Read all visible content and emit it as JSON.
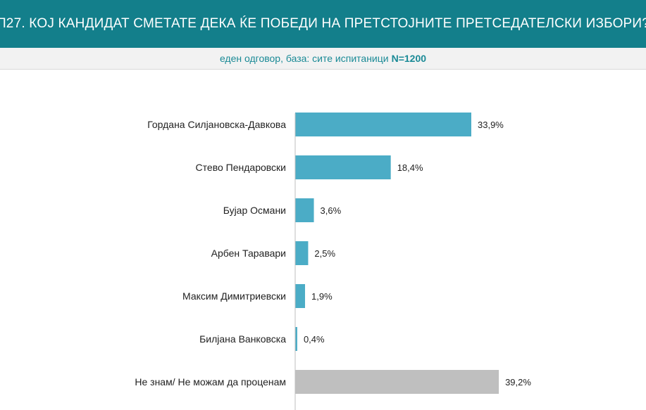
{
  "header": {
    "title": "П27. КОЈ КАНДИДАТ СМЕТАТЕ ДЕКА ЌЕ ПОБЕДИ НА ПРЕТСТОЈНИТЕ ПРЕТСЕДАТЕЛСКИ ИЗБОРИ?"
  },
  "subtitle": {
    "text": "еден одговор, база: сите испитаници",
    "n": "N=1200"
  },
  "colors": {
    "header_bg": "#137f8b",
    "bar_primary": "#4bacc6",
    "bar_unknown": "#bfbfbf",
    "axis": "#bfbfbf"
  },
  "chart_data": {
    "type": "bar",
    "orientation": "horizontal",
    "categories": [
      "Гордана Силјановска-Давкова",
      "Стево Пендаровски",
      "Бујар Османи",
      "Арбен Таравари",
      "Максим Димитриевски",
      "Билјана Ванковска",
      "Не знам/ Не можам да проценам"
    ],
    "values": [
      33.9,
      18.4,
      3.6,
      2.5,
      1.9,
      0.4,
      39.2
    ],
    "value_labels": [
      "33,9%",
      "18,4%",
      "3,6%",
      "2,5%",
      "1,9%",
      "0,4%",
      "39,2%"
    ],
    "bar_colors": [
      "#4bacc6",
      "#4bacc6",
      "#4bacc6",
      "#4bacc6",
      "#4bacc6",
      "#4bacc6",
      "#bfbfbf"
    ],
    "xlim": [
      0,
      45
    ],
    "grid": false,
    "legend": "none"
  }
}
